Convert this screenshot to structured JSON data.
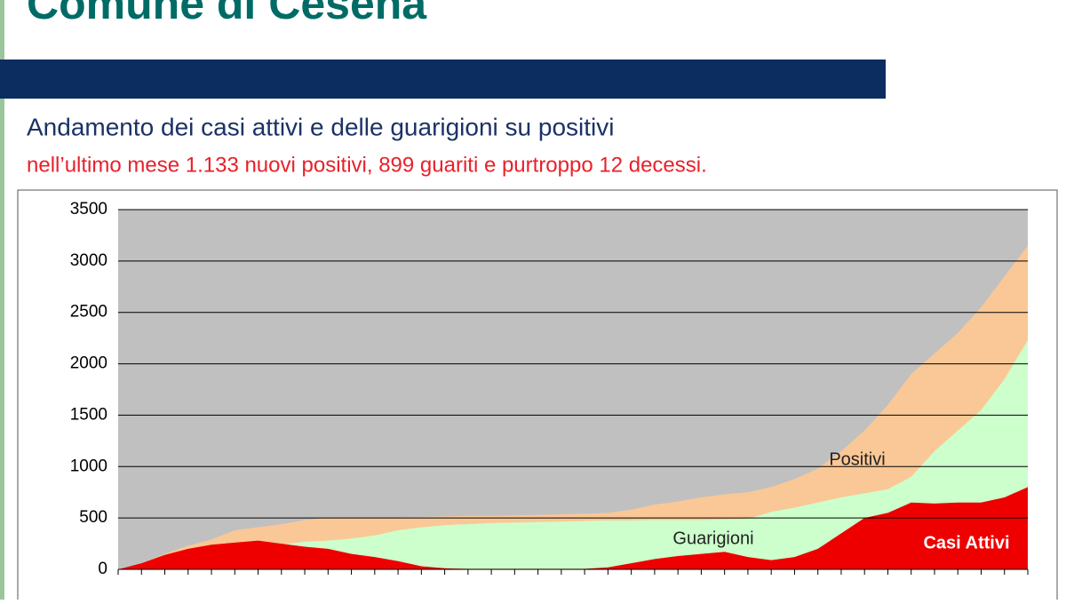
{
  "header": {
    "title": "Comune di Cesena"
  },
  "chart_data": {
    "type": "area",
    "title": "Andamento dei casi attivi e delle guarigioni su positivi",
    "subtitle": "nell’ultimo mese 1.133 nuovi positivi, 899 guariti e purtroppo 12 decessi.",
    "ylim": [
      0,
      3500
    ],
    "yticks": [
      0,
      500,
      1000,
      1500,
      2000,
      2500,
      3000,
      3500
    ],
    "grid": true,
    "series": [
      {
        "name": "Positivi",
        "color": "#fac896",
        "values": [
          0,
          60,
          150,
          230,
          290,
          380,
          410,
          440,
          480,
          500,
          500,
          500,
          505,
          510,
          515,
          520,
          520,
          525,
          530,
          535,
          540,
          550,
          580,
          630,
          660,
          700,
          730,
          750,
          800,
          880,
          980,
          1150,
          1350,
          1600,
          1900,
          2100,
          2300,
          2550,
          2850,
          3150
        ]
      },
      {
        "name": "Guarigioni",
        "color": "#ccffcc",
        "values": [
          0,
          10,
          30,
          60,
          100,
          150,
          200,
          240,
          270,
          280,
          300,
          330,
          380,
          410,
          430,
          440,
          450,
          455,
          460,
          465,
          470,
          475,
          475,
          480,
          480,
          480,
          485,
          490,
          560,
          600,
          650,
          700,
          740,
          780,
          900,
          1150,
          1350,
          1550,
          1850,
          2230
        ]
      },
      {
        "name": "Casi Attivi",
        "color": "#ee0000",
        "values": [
          0,
          60,
          140,
          200,
          240,
          260,
          280,
          250,
          220,
          200,
          150,
          120,
          80,
          30,
          10,
          5,
          5,
          5,
          5,
          5,
          5,
          20,
          60,
          100,
          130,
          150,
          170,
          120,
          90,
          120,
          200,
          350,
          500,
          550,
          650,
          640,
          650,
          650,
          700,
          800
        ]
      }
    ]
  }
}
